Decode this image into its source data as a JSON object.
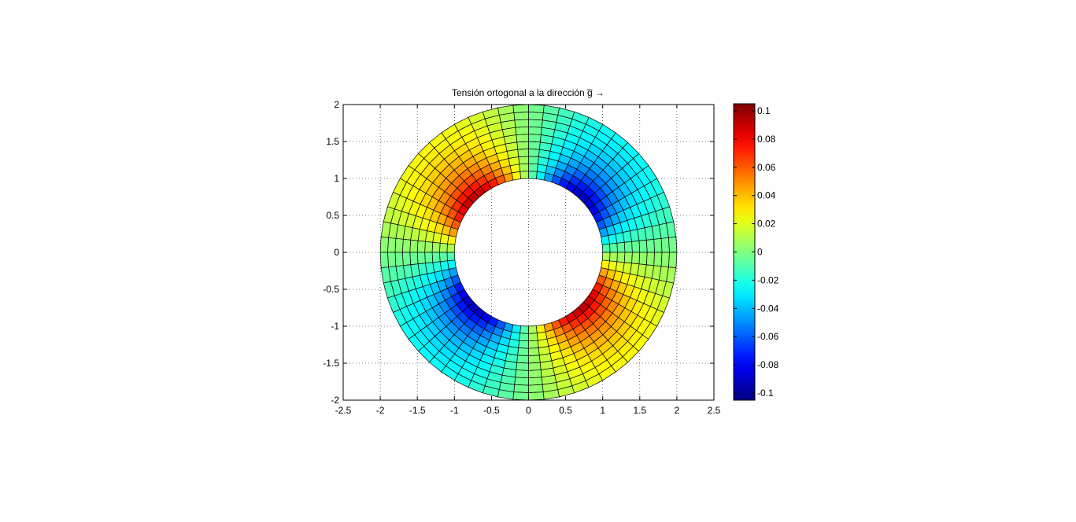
{
  "chart_data": {
    "type": "heatmap",
    "title": "Tensión ortogonal a la dirección g̅ →",
    "xlabel": "",
    "ylabel": "",
    "xlim": [
      -2.5,
      2.5
    ],
    "ylim": [
      -2,
      2
    ],
    "xticks": [
      -2.5,
      -2,
      -1.5,
      -1,
      -0.5,
      0,
      0.5,
      1,
      1.5,
      2,
      2.5
    ],
    "xtick_labels": [
      "-2.5",
      "-2",
      "-1.5",
      "-1",
      "-0.5",
      "0",
      "0.5",
      "1",
      "1.5",
      "2",
      "2.5"
    ],
    "yticks": [
      2,
      1.5,
      1,
      0.5,
      0,
      -0.5,
      -1,
      -1.5,
      -2
    ],
    "ytick_labels": [
      "2",
      "1.5",
      "1",
      "0.5",
      "0",
      "-0.5",
      "-1",
      "-1.5",
      "-2"
    ],
    "grid": true,
    "colormap": "jet",
    "mesh": {
      "inner_radius": 1,
      "outer_radius": 2,
      "radial_divisions": 10,
      "angular_divisions": 60,
      "field": "-0.1 * sin(2*theta) * (1/r)^2",
      "field_range": [
        -0.105,
        0.105
      ]
    },
    "colorbar": {
      "range": [
        -0.105,
        0.105
      ],
      "ticks": [
        0.1,
        0.08,
        0.06,
        0.04,
        0.02,
        0,
        -0.02,
        -0.04,
        -0.06,
        -0.08,
        -0.1
      ],
      "tick_labels": [
        "0.1",
        "0.08",
        "0.06",
        "0.04",
        "0.02",
        "0",
        "-0.02",
        "-0.04",
        "-0.06",
        "-0.08",
        "-0.1"
      ]
    }
  }
}
